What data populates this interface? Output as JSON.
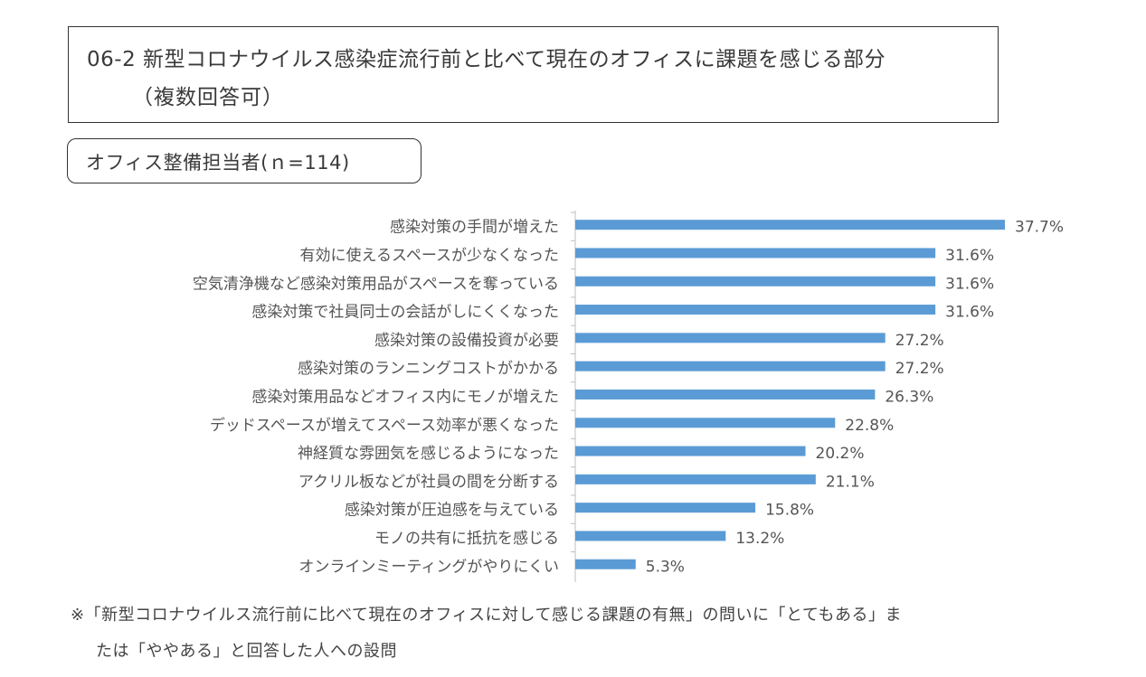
{
  "header": {
    "title": "06-2 新型コロナウイルス感染症流行前と比べて現在のオフィスに課題を感じる部分",
    "title_note": "（複数回答可）",
    "respondent_group": "オフィス整備担当者(ｎ=114)"
  },
  "chart_data": {
    "type": "bar",
    "orientation": "horizontal",
    "categories": [
      "感染対策の手間が増えた",
      "有効に使えるスペースが少なくなった",
      "空気清浄機など感染対策用品がスペースを奪っている",
      "感染対策で社員同士の会話がしにくくなった",
      "感染対策の設備投資が必要",
      "感染対策のランニングコストがかかる",
      "感染対策用品などオフィス内にモノが増えた",
      "デッドスペースが増えてスペース効率が悪くなった",
      "神経質な雰囲気を感じるようになった",
      "アクリル板などが社員の間を分断する",
      "感染対策が圧迫感を与えている",
      "モノの共有に抵抗を感じる",
      "オンラインミーティングがやりにくい"
    ],
    "values": [
      37.7,
      31.6,
      31.6,
      31.6,
      27.2,
      27.2,
      26.3,
      22.8,
      20.2,
      21.1,
      15.8,
      13.2,
      5.3
    ],
    "value_labels": [
      "37.7%",
      "31.6%",
      "31.6%",
      "31.6%",
      "27.2%",
      "27.2%",
      "26.3%",
      "22.8%",
      "20.2%",
      "21.1%",
      "15.8%",
      "13.2%",
      "5.3%"
    ],
    "unit": "%",
    "xlim": [
      0,
      37.7
    ],
    "bar_color": "#5b9bd5",
    "grid": false
  },
  "footnote": {
    "line1": "※「新型コロナウイルス流行前に比べて現在のオフィスに対して感じる課題の有無」の問いに「とてもある」ま",
    "line2": "たは「ややある」と回答した人への設問"
  }
}
